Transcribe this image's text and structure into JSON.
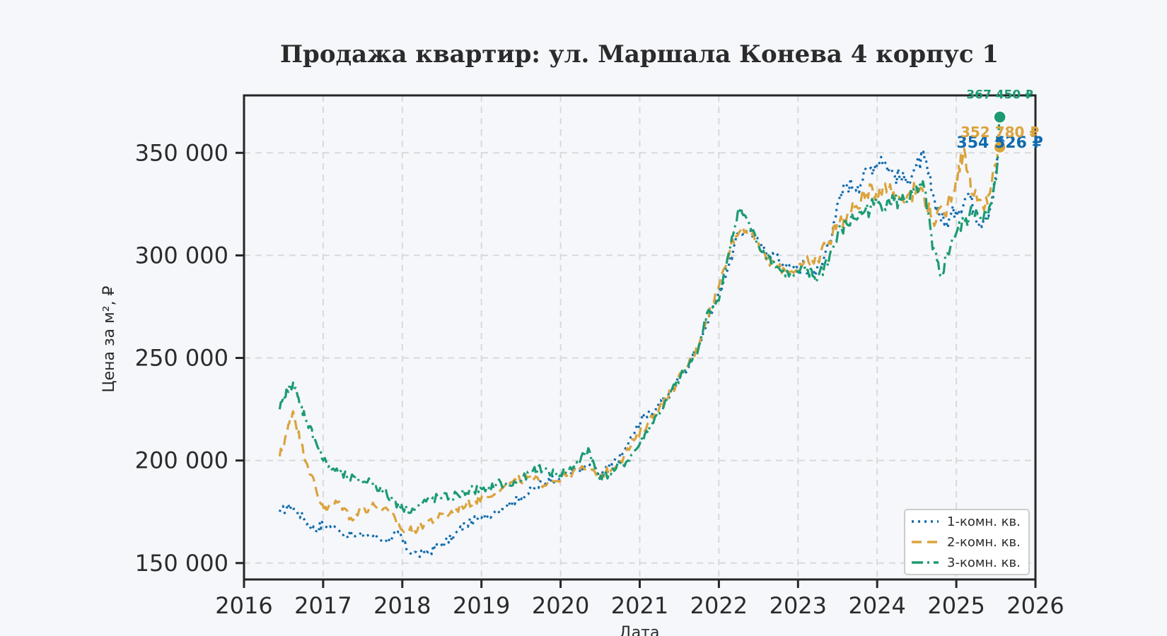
{
  "chart_data": {
    "type": "line",
    "title": "Продажа квартир: ул. Маршала Конева 4 корпус 1",
    "xlabel": "Дата",
    "ylabel": "Цена за м², ₽",
    "xlim": [
      2016,
      2026
    ],
    "ylim": [
      142000,
      378000
    ],
    "x_ticks": [
      "2016",
      "2017",
      "2018",
      "2019",
      "2020",
      "2021",
      "2022",
      "2023",
      "2024",
      "2025",
      "2026"
    ],
    "y_ticks": [
      "150 000",
      "200 000",
      "250 000",
      "300 000",
      "350 000"
    ],
    "y_tick_values": [
      150000,
      200000,
      250000,
      300000,
      350000
    ],
    "grid": true,
    "legend_position": "bottom-right",
    "series": [
      {
        "name": "1-комн. кв.",
        "color": "#0f6aad",
        "line_style": "dotted",
        "points": [
          [
            2016.45,
            175000
          ],
          [
            2016.6,
            178000
          ],
          [
            2016.75,
            172000
          ],
          [
            2016.9,
            166000
          ],
          [
            2017.0,
            169000
          ],
          [
            2017.2,
            166000
          ],
          [
            2017.4,
            163000
          ],
          [
            2017.6,
            164000
          ],
          [
            2017.8,
            161000
          ],
          [
            2017.95,
            165000
          ],
          [
            2018.05,
            157000
          ],
          [
            2018.2,
            154000
          ],
          [
            2018.35,
            156000
          ],
          [
            2018.5,
            159000
          ],
          [
            2018.65,
            163000
          ],
          [
            2018.8,
            169000
          ],
          [
            2019.0,
            172000
          ],
          [
            2019.2,
            176000
          ],
          [
            2019.4,
            180000
          ],
          [
            2019.55,
            183000
          ],
          [
            2019.7,
            187000
          ],
          [
            2019.85,
            191000
          ],
          [
            2020.0,
            192000
          ],
          [
            2020.2,
            195000
          ],
          [
            2020.35,
            197000
          ],
          [
            2020.5,
            193000
          ],
          [
            2020.65,
            198000
          ],
          [
            2020.8,
            204000
          ],
          [
            2020.95,
            215000
          ],
          [
            2021.05,
            222000
          ],
          [
            2021.2,
            225000
          ],
          [
            2021.35,
            231000
          ],
          [
            2021.5,
            240000
          ],
          [
            2021.65,
            248000
          ],
          [
            2021.8,
            262000
          ],
          [
            2021.95,
            277000
          ],
          [
            2022.1,
            292000
          ],
          [
            2022.25,
            311000
          ],
          [
            2022.4,
            312000
          ],
          [
            2022.55,
            303000
          ],
          [
            2022.7,
            300000
          ],
          [
            2022.85,
            295000
          ],
          [
            2023.0,
            294000
          ],
          [
            2023.15,
            293000
          ],
          [
            2023.3,
            295000
          ],
          [
            2023.45,
            316000
          ],
          [
            2023.6,
            335000
          ],
          [
            2023.75,
            334000
          ],
          [
            2023.9,
            342000
          ],
          [
            2024.05,
            348000
          ],
          [
            2024.2,
            340000
          ],
          [
            2024.35,
            336000
          ],
          [
            2024.5,
            344000
          ],
          [
            2024.6,
            347000
          ],
          [
            2024.7,
            330000
          ],
          [
            2024.85,
            315000
          ],
          [
            2025.0,
            322000
          ],
          [
            2025.15,
            330000
          ],
          [
            2025.3,
            316000
          ],
          [
            2025.45,
            326000
          ],
          [
            2025.55,
            354526
          ]
        ]
      },
      {
        "name": "2-комн. кв.",
        "color": "#dba33b",
        "line_style": "dashed",
        "points": [
          [
            2016.45,
            202000
          ],
          [
            2016.55,
            215000
          ],
          [
            2016.62,
            224000
          ],
          [
            2016.72,
            208000
          ],
          [
            2016.85,
            193000
          ],
          [
            2016.95,
            181000
          ],
          [
            2017.05,
            176000
          ],
          [
            2017.2,
            180000
          ],
          [
            2017.35,
            172000
          ],
          [
            2017.5,
            176000
          ],
          [
            2017.65,
            178000
          ],
          [
            2017.85,
            174000
          ],
          [
            2018.0,
            166000
          ],
          [
            2018.15,
            166000
          ],
          [
            2018.3,
            170000
          ],
          [
            2018.45,
            172000
          ],
          [
            2018.6,
            174000
          ],
          [
            2018.75,
            178000
          ],
          [
            2018.9,
            180000
          ],
          [
            2019.05,
            183000
          ],
          [
            2019.25,
            186000
          ],
          [
            2019.45,
            190000
          ],
          [
            2019.6,
            192000
          ],
          [
            2019.75,
            189000
          ],
          [
            2019.9,
            190000
          ],
          [
            2020.1,
            193000
          ],
          [
            2020.3,
            196000
          ],
          [
            2020.5,
            192000
          ],
          [
            2020.65,
            196000
          ],
          [
            2020.8,
            202000
          ],
          [
            2020.95,
            211000
          ],
          [
            2021.1,
            218000
          ],
          [
            2021.25,
            226000
          ],
          [
            2021.4,
            234000
          ],
          [
            2021.55,
            243000
          ],
          [
            2021.7,
            252000
          ],
          [
            2021.85,
            270000
          ],
          [
            2022.0,
            285000
          ],
          [
            2022.15,
            305000
          ],
          [
            2022.3,
            314000
          ],
          [
            2022.45,
            308000
          ],
          [
            2022.6,
            298000
          ],
          [
            2022.75,
            294000
          ],
          [
            2022.9,
            292000
          ],
          [
            2023.05,
            295000
          ],
          [
            2023.2,
            296000
          ],
          [
            2023.35,
            305000
          ],
          [
            2023.5,
            316000
          ],
          [
            2023.65,
            320000
          ],
          [
            2023.8,
            328000
          ],
          [
            2023.95,
            331000
          ],
          [
            2024.1,
            335000
          ],
          [
            2024.25,
            328000
          ],
          [
            2024.4,
            330000
          ],
          [
            2024.55,
            333000
          ],
          [
            2024.7,
            318000
          ],
          [
            2024.85,
            320000
          ],
          [
            2025.0,
            338000
          ],
          [
            2025.1,
            352000
          ],
          [
            2025.2,
            330000
          ],
          [
            2025.35,
            322000
          ],
          [
            2025.45,
            336000
          ],
          [
            2025.55,
            352780
          ]
        ]
      },
      {
        "name": "3-комн. кв.",
        "color": "#1c9b72",
        "line_style": "dashdot",
        "points": [
          [
            2016.45,
            225000
          ],
          [
            2016.55,
            234000
          ],
          [
            2016.62,
            238000
          ],
          [
            2016.7,
            228000
          ],
          [
            2016.8,
            219000
          ],
          [
            2016.9,
            210000
          ],
          [
            2017.0,
            200000
          ],
          [
            2017.15,
            195000
          ],
          [
            2017.3,
            192000
          ],
          [
            2017.45,
            190000
          ],
          [
            2017.6,
            190000
          ],
          [
            2017.75,
            185000
          ],
          [
            2017.9,
            180000
          ],
          [
            2018.0,
            177000
          ],
          [
            2018.15,
            176000
          ],
          [
            2018.3,
            180000
          ],
          [
            2018.45,
            182000
          ],
          [
            2018.6,
            182000
          ],
          [
            2018.75,
            184000
          ],
          [
            2018.9,
            186000
          ],
          [
            2019.05,
            185000
          ],
          [
            2019.2,
            189000
          ],
          [
            2019.35,
            188000
          ],
          [
            2019.5,
            190000
          ],
          [
            2019.65,
            195000
          ],
          [
            2019.8,
            196000
          ],
          [
            2019.95,
            193000
          ],
          [
            2020.1,
            195000
          ],
          [
            2020.25,
            200000
          ],
          [
            2020.35,
            206000
          ],
          [
            2020.45,
            194000
          ],
          [
            2020.55,
            192000
          ],
          [
            2020.7,
            196000
          ],
          [
            2020.85,
            200000
          ],
          [
            2021.0,
            208000
          ],
          [
            2021.15,
            218000
          ],
          [
            2021.3,
            226000
          ],
          [
            2021.45,
            237000
          ],
          [
            2021.6,
            245000
          ],
          [
            2021.75,
            256000
          ],
          [
            2021.85,
            272000
          ],
          [
            2022.0,
            278000
          ],
          [
            2022.15,
            305000
          ],
          [
            2022.25,
            323000
          ],
          [
            2022.35,
            318000
          ],
          [
            2022.5,
            305000
          ],
          [
            2022.65,
            298000
          ],
          [
            2022.8,
            292000
          ],
          [
            2022.95,
            290000
          ],
          [
            2023.1,
            292000
          ],
          [
            2023.25,
            289000
          ],
          [
            2023.4,
            300000
          ],
          [
            2023.55,
            313000
          ],
          [
            2023.7,
            318000
          ],
          [
            2023.85,
            322000
          ],
          [
            2024.0,
            325000
          ],
          [
            2024.15,
            327000
          ],
          [
            2024.3,
            326000
          ],
          [
            2024.45,
            330000
          ],
          [
            2024.6,
            332000
          ],
          [
            2024.7,
            303000
          ],
          [
            2024.8,
            290000
          ],
          [
            2024.95,
            308000
          ],
          [
            2025.1,
            316000
          ],
          [
            2025.25,
            322000
          ],
          [
            2025.4,
            318000
          ],
          [
            2025.5,
            335000
          ],
          [
            2025.55,
            367450
          ]
        ]
      }
    ],
    "end_labels": [
      {
        "series": "3-комн. кв.",
        "text": "367 450 ₽",
        "value": 367450,
        "color": "#1c9b72"
      },
      {
        "series": "1-комн. кв.",
        "text": "354 526 ₽",
        "value": 354526,
        "color": "#0f6aad"
      },
      {
        "series": "2-комн. кв.",
        "text": "352 780 ₽",
        "value": 352780,
        "color": "#dba33b"
      }
    ]
  }
}
